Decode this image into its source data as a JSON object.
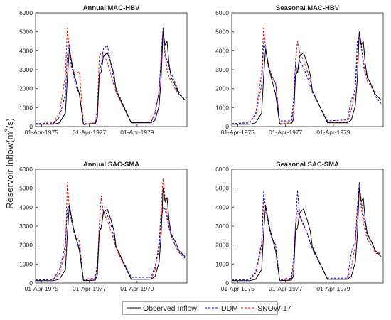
{
  "figure": {
    "ylabel": "Reservoir Inflow(m",
    "ylabel_sup": "3",
    "ylabel_end": "/s)"
  },
  "legend": {
    "placement": "bottom-center",
    "entries": [
      {
        "name": "Observed Inflow",
        "color": "#000000",
        "dash": "solid"
      },
      {
        "name": "DDM",
        "color": "#0000ff",
        "dash": "dashed"
      },
      {
        "name": "SNOW-17",
        "color": "#ff0000",
        "dash": "dashed"
      }
    ]
  },
  "chart_data": [
    {
      "type": "line",
      "title": "Annual MAC-HBV",
      "ylim": [
        0,
        6000
      ],
      "yticks": [
        0,
        1000,
        2000,
        3000,
        4000,
        5000,
        6000
      ],
      "xlim": [
        "1975-01-01",
        "1981-05-01"
      ],
      "xticks": [
        {
          "date": "1975-04-01",
          "label": "01-Apr-1975"
        },
        {
          "date": "1977-04-01",
          "label": "01-Apr-1977"
        },
        {
          "date": "1979-04-01",
          "label": "01-Apr-1979"
        }
      ],
      "x": [
        "1975-01-01",
        "1975-10-01",
        "1976-01-01",
        "1976-04-01",
        "1976-05-01",
        "1976-06-01",
        "1976-07-01",
        "1976-08-01",
        "1976-09-01",
        "1976-11-01",
        "1977-01-01",
        "1977-01-15",
        "1977-07-01",
        "1977-08-01",
        "1977-09-01",
        "1977-10-01",
        "1977-11-01",
        "1978-01-01",
        "1978-03-01",
        "1978-04-15",
        "1978-05-15",
        "1979-01-01",
        "1979-11-01",
        "1980-01-01",
        "1980-03-01",
        "1980-04-01",
        "1980-05-01",
        "1980-06-01",
        "1980-07-01",
        "1980-08-01",
        "1980-09-01",
        "1980-11-01",
        "1981-01-01",
        "1981-04-01"
      ],
      "series": [
        {
          "name": "Observed Inflow",
          "values": [
            120,
            120,
            200,
            700,
            2600,
            4100,
            3500,
            2900,
            2500,
            1700,
            150,
            120,
            150,
            400,
            2700,
            2900,
            3700,
            3900,
            3300,
            2700,
            1900,
            200,
            200,
            350,
            1100,
            2500,
            5000,
            4300,
            4500,
            3300,
            2600,
            2200,
            1700,
            1400
          ]
        },
        {
          "name": "DDM",
          "values": [
            150,
            150,
            500,
            1700,
            3800,
            4300,
            3300,
            2800,
            2200,
            1700,
            100,
            100,
            180,
            600,
            2800,
            3300,
            4100,
            4300,
            3200,
            2400,
            2000,
            200,
            230,
            700,
            1900,
            3700,
            5200,
            3700,
            3500,
            3100,
            2800,
            2300,
            1800,
            1400
          ]
        },
        {
          "name": "SNOW-17",
          "values": [
            160,
            200,
            700,
            2700,
            5200,
            4000,
            3100,
            2900,
            2800,
            2900,
            150,
            150,
            200,
            900,
            3700,
            3900,
            3800,
            3400,
            2700,
            2100,
            1800,
            210,
            230,
            800,
            1800,
            3500,
            5100,
            3900,
            3000,
            2600,
            2400,
            2000,
            1700,
            1400
          ]
        }
      ]
    },
    {
      "type": "line",
      "title": "Seasonal MAC-HBV",
      "ylim": [
        0,
        6000
      ],
      "yticks": [
        0,
        1000,
        2000,
        3000,
        4000,
        5000,
        6000
      ],
      "xlim": [
        "1975-01-01",
        "1981-05-01"
      ],
      "xticks": [
        {
          "date": "1975-04-01",
          "label": "01-Apr-1975"
        },
        {
          "date": "1977-04-01",
          "label": "01-Apr-1977"
        },
        {
          "date": "1979-04-01",
          "label": "01-Apr-1979"
        }
      ],
      "x": [
        "1975-01-01",
        "1975-10-01",
        "1976-01-01",
        "1976-04-01",
        "1976-05-01",
        "1976-06-01",
        "1976-07-01",
        "1976-08-01",
        "1976-09-01",
        "1976-11-01",
        "1977-01-01",
        "1977-01-15",
        "1977-07-01",
        "1977-08-01",
        "1977-09-01",
        "1977-10-01",
        "1977-11-01",
        "1978-01-01",
        "1978-03-01",
        "1978-04-15",
        "1978-05-15",
        "1979-01-01",
        "1979-11-01",
        "1980-01-01",
        "1980-03-01",
        "1980-04-01",
        "1980-05-01",
        "1980-06-01",
        "1980-07-01",
        "1980-08-01",
        "1980-09-01",
        "1980-11-01",
        "1981-01-01",
        "1981-04-01"
      ],
      "series": [
        {
          "name": "Observed Inflow",
          "values": [
            120,
            120,
            200,
            700,
            2600,
            4100,
            3500,
            2900,
            2500,
            1700,
            150,
            120,
            150,
            400,
            2700,
            2900,
            3700,
            3900,
            3300,
            2700,
            1900,
            200,
            200,
            350,
            1100,
            2500,
            5000,
            4300,
            4500,
            3300,
            2600,
            2200,
            1700,
            1400
          ]
        },
        {
          "name": "DDM",
          "values": [
            150,
            200,
            600,
            2200,
            4400,
            4100,
            3500,
            3000,
            2700,
            2300,
            300,
            300,
            300,
            1400,
            3300,
            2800,
            3500,
            3100,
            2600,
            2100,
            1800,
            300,
            350,
            1400,
            2000,
            4500,
            4800,
            4200,
            3500,
            2900,
            2600,
            2200,
            1600,
            1200
          ]
        },
        {
          "name": "SNOW-17",
          "values": [
            160,
            200,
            700,
            2800,
            5200,
            4200,
            3300,
            2900,
            2600,
            2300,
            150,
            160,
            200,
            900,
            3500,
            4500,
            3900,
            3500,
            2900,
            2400,
            1900,
            230,
            230,
            900,
            2000,
            3600,
            4900,
            4400,
            3200,
            2800,
            2400,
            2100,
            1700,
            1400
          ]
        }
      ]
    },
    {
      "type": "line",
      "title": "Annual SAC-SMA",
      "ylim": [
        0,
        6000
      ],
      "yticks": [
        0,
        1000,
        2000,
        3000,
        4000,
        5000,
        6000
      ],
      "xlim": [
        "1975-01-01",
        "1981-05-01"
      ],
      "xticks": [
        {
          "date": "1975-04-01",
          "label": "01-Apr-1975"
        },
        {
          "date": "1977-04-01",
          "label": "01-Apr-1977"
        },
        {
          "date": "1979-04-01",
          "label": "01-Apr-1979"
        }
      ],
      "x": [
        "1975-01-01",
        "1975-10-01",
        "1976-01-01",
        "1976-04-01",
        "1976-05-01",
        "1976-06-01",
        "1976-07-01",
        "1976-08-01",
        "1976-09-01",
        "1976-11-01",
        "1977-01-01",
        "1977-01-15",
        "1977-07-01",
        "1977-08-01",
        "1977-09-01",
        "1977-10-01",
        "1977-11-01",
        "1978-01-01",
        "1978-03-01",
        "1978-04-15",
        "1978-05-15",
        "1979-01-01",
        "1979-11-01",
        "1980-01-01",
        "1980-03-01",
        "1980-04-01",
        "1980-05-01",
        "1980-06-01",
        "1980-07-01",
        "1980-08-01",
        "1980-09-01",
        "1980-11-01",
        "1981-01-01",
        "1981-04-01"
      ],
      "series": [
        {
          "name": "Observed Inflow",
          "values": [
            120,
            120,
            200,
            700,
            2600,
            4100,
            3500,
            2900,
            2500,
            1700,
            150,
            120,
            150,
            400,
            2700,
            2900,
            3700,
            3900,
            3300,
            2700,
            1900,
            200,
            200,
            350,
            1100,
            2500,
            5000,
            4300,
            4500,
            3300,
            2600,
            2200,
            1700,
            1400
          ]
        },
        {
          "name": "DDM",
          "values": [
            150,
            200,
            700,
            2000,
            3900,
            4100,
            3400,
            2800,
            2400,
            1900,
            200,
            200,
            250,
            1000,
            2700,
            3000,
            3800,
            3600,
            3000,
            2400,
            1900,
            300,
            300,
            900,
            1800,
            3300,
            4000,
            3900,
            3400,
            2900,
            2500,
            2000,
            1600,
            1300
          ]
        },
        {
          "name": "SNOW-17",
          "values": [
            160,
            180,
            500,
            1700,
            5300,
            3900,
            3300,
            2900,
            2500,
            2200,
            150,
            160,
            200,
            700,
            3100,
            4600,
            3700,
            3300,
            2700,
            2200,
            1800,
            200,
            200,
            700,
            2200,
            3900,
            5500,
            4500,
            3600,
            3000,
            2500,
            2000,
            1600,
            1400
          ]
        }
      ]
    },
    {
      "type": "line",
      "title": "Seasonal SAC-SMA",
      "ylim": [
        0,
        6000
      ],
      "yticks": [
        0,
        1000,
        2000,
        3000,
        4000,
        5000,
        6000
      ],
      "xlim": [
        "1975-01-01",
        "1981-05-01"
      ],
      "xticks": [
        {
          "date": "1975-04-01",
          "label": "01-Apr-1975"
        },
        {
          "date": "1977-04-01",
          "label": "01-Apr-1977"
        },
        {
          "date": "1979-04-01",
          "label": "01-Apr-1979"
        }
      ],
      "x": [
        "1975-01-01",
        "1975-10-01",
        "1976-01-01",
        "1976-04-01",
        "1976-05-01",
        "1976-06-01",
        "1976-07-01",
        "1976-08-01",
        "1976-09-01",
        "1976-11-01",
        "1977-01-01",
        "1977-01-15",
        "1977-07-01",
        "1977-08-01",
        "1977-09-01",
        "1977-10-01",
        "1977-11-01",
        "1978-01-01",
        "1978-03-01",
        "1978-04-15",
        "1978-05-15",
        "1979-01-01",
        "1979-11-01",
        "1980-01-01",
        "1980-03-01",
        "1980-04-01",
        "1980-05-01",
        "1980-06-01",
        "1980-07-01",
        "1980-08-01",
        "1980-09-01",
        "1980-11-01",
        "1981-01-01",
        "1981-04-01"
      ],
      "series": [
        {
          "name": "Observed Inflow",
          "values": [
            120,
            120,
            200,
            700,
            2600,
            4100,
            3500,
            2900,
            2500,
            1700,
            150,
            120,
            150,
            400,
            2700,
            2900,
            3700,
            3900,
            3300,
            2700,
            1900,
            200,
            200,
            350,
            1100,
            2500,
            5000,
            4300,
            4500,
            3300,
            2600,
            2200,
            1700,
            1400
          ]
        },
        {
          "name": "DDM",
          "values": [
            150,
            200,
            600,
            2100,
            4800,
            4000,
            3300,
            2800,
            2400,
            2000,
            200,
            200,
            250,
            1300,
            3000,
            4900,
            3600,
            3100,
            2600,
            2100,
            1800,
            250,
            250,
            1600,
            2200,
            4000,
            5300,
            4300,
            3600,
            3000,
            2500,
            2200,
            1700,
            1500
          ]
        },
        {
          "name": "SNOW-17",
          "values": [
            160,
            180,
            500,
            1900,
            4200,
            4000,
            3300,
            2800,
            2400,
            2000,
            150,
            160,
            200,
            800,
            3100,
            3800,
            3500,
            3000,
            2600,
            2100,
            1800,
            200,
            200,
            800,
            2000,
            3700,
            5100,
            4000,
            3200,
            2700,
            2300,
            2000,
            1600,
            1400
          ]
        }
      ]
    }
  ]
}
